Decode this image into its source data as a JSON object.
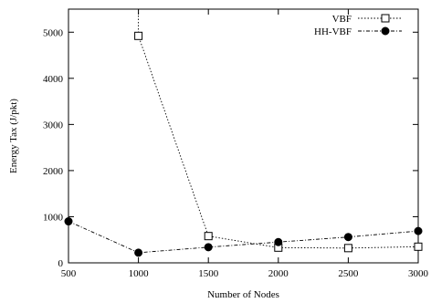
{
  "chart_data": {
    "type": "line",
    "xlabel": "Number of Nodes",
    "ylabel": "Energy Tax (J/pkt)",
    "xlim": [
      500,
      3000
    ],
    "ylim": [
      0,
      5500
    ],
    "xticks": [
      500,
      1000,
      1500,
      2000,
      2500,
      3000
    ],
    "yticks": [
      0,
      1000,
      2000,
      3000,
      4000,
      5000
    ],
    "grid": false,
    "legend_position": "top-right",
    "series": [
      {
        "name": "VBF",
        "marker": "open-square",
        "line_style": "dotted",
        "x": [
          1000,
          1500,
          2000,
          2500,
          3000
        ],
        "y": [
          4920,
          580,
          330,
          320,
          350
        ],
        "extends_above_ylim_from_x": 1000
      },
      {
        "name": "HH-VBF",
        "marker": "filled-circle",
        "line_style": "dash-dot",
        "x": [
          500,
          1000,
          1500,
          2000,
          2500,
          3000
        ],
        "y": [
          900,
          220,
          340,
          450,
          560,
          690
        ]
      }
    ]
  }
}
